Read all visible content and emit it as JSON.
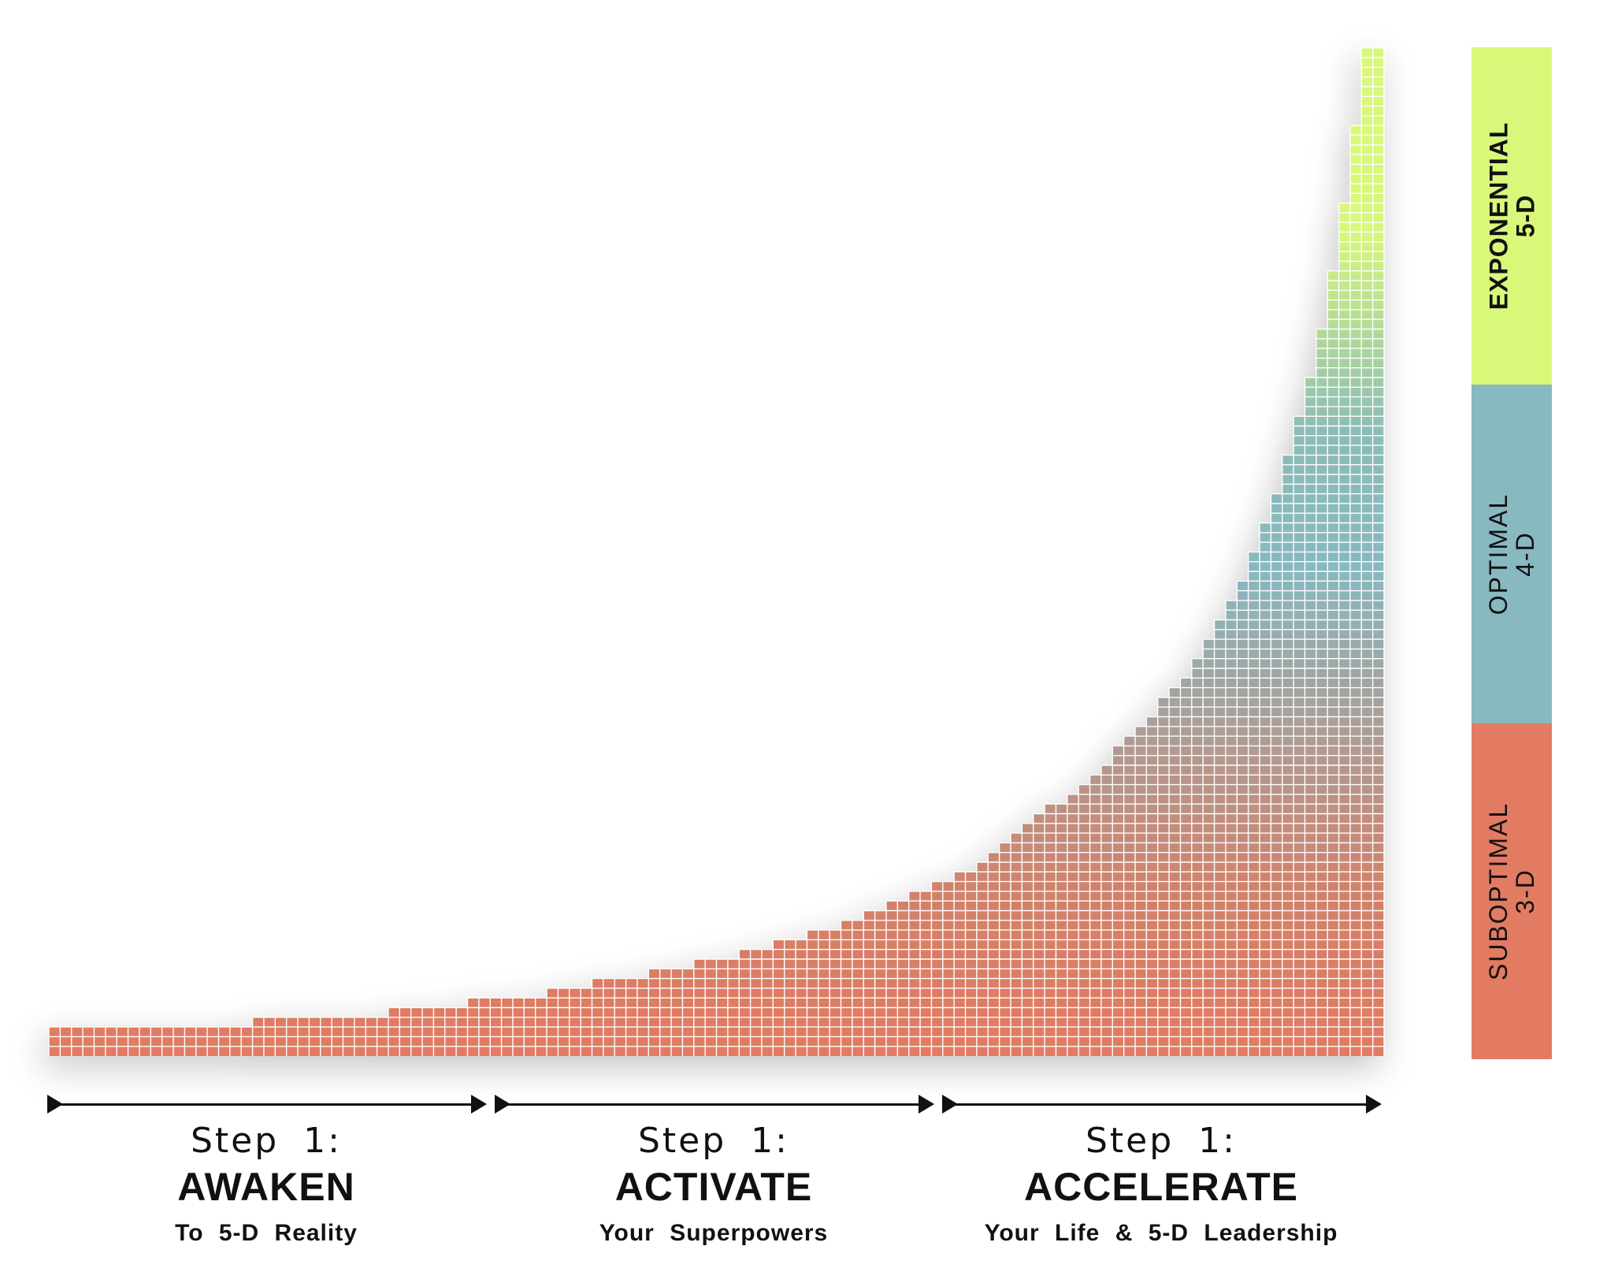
{
  "colors": {
    "suboptimal": "#e27b62",
    "optimal": "#88b8c0",
    "exponential": "#d9f87a",
    "gradient_low": "#e27b62",
    "gradient_mid": "#88b8c0",
    "gradient_high": "#d9f87a",
    "grid_line": "#ffffff",
    "text": "#111111"
  },
  "chart_data": {
    "type": "bar",
    "description_growth": "exponential",
    "column_heights": [
      3,
      3,
      3,
      3,
      3,
      3,
      3,
      3,
      3,
      3,
      3,
      3,
      3,
      3,
      3,
      3,
      3,
      3,
      4,
      4,
      4,
      4,
      4,
      4,
      4,
      4,
      4,
      4,
      4,
      4,
      5,
      5,
      5,
      5,
      5,
      5,
      5,
      6,
      6,
      6,
      6,
      6,
      6,
      6,
      7,
      7,
      7,
      7,
      8,
      8,
      8,
      8,
      8,
      9,
      9,
      9,
      9,
      10,
      10,
      10,
      10,
      11,
      11,
      11,
      12,
      12,
      12,
      13,
      13,
      13,
      14,
      14,
      15,
      15,
      16,
      16,
      17,
      17,
      18,
      18,
      19,
      19,
      20,
      21,
      22,
      23,
      24,
      25,
      26,
      26,
      27,
      28,
      29,
      30,
      32,
      33,
      34,
      35,
      37,
      38,
      39,
      41,
      43,
      45,
      47,
      49,
      52,
      55,
      58,
      62,
      66,
      70,
      75,
      81,
      88,
      96,
      104,
      104
    ],
    "max_rows": 104
  },
  "bands": [
    {
      "key": "exponential",
      "lines": [
        "EXPONENTIAL",
        "5-D"
      ]
    },
    {
      "key": "optimal",
      "lines": [
        "OPTIMAL",
        "4-D"
      ]
    },
    {
      "key": "suboptimal",
      "lines": [
        "SUBOPTIMAL",
        "3-D"
      ]
    }
  ],
  "steps": [
    {
      "kicker": "Step 1:",
      "title": "AWAKEN",
      "subtitle": "To 5-D Reality"
    },
    {
      "kicker": "Step 1:",
      "title": "ACTIVATE",
      "subtitle": "Your Superpowers"
    },
    {
      "kicker": "Step 1:",
      "title": "ACCELERATE",
      "subtitle": "Your Life & 5-D Leadership"
    }
  ]
}
